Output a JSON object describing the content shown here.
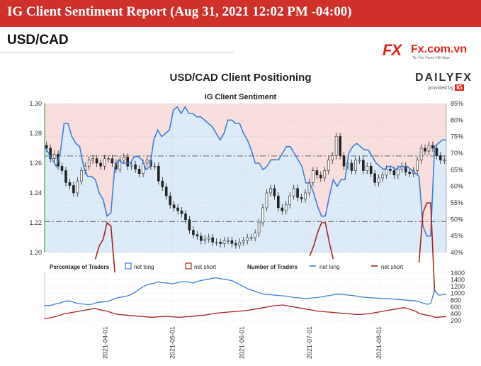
{
  "banner": {
    "title": "IG Client Sentiment Report (Aug 31, 2021 12:02 PM -04:00)"
  },
  "pair": "USD/CAD",
  "logo": {
    "mark": "FX",
    "text": "Fx.com.vn",
    "sub": "Tin Tức Forex Việt Nam"
  },
  "chart_data": {
    "type": "line",
    "title": "USD/CAD Client Positioning",
    "subtitle": "IG Client Sentiment",
    "brand": {
      "name": "DAILYFX",
      "provided_by": "provided by",
      "badge": "IG"
    },
    "price_axis": {
      "ylim": [
        1.2,
        1.3
      ],
      "ticks": [
        "1.30",
        "1.28",
        "1.26",
        "1.24",
        "1.22",
        "1.20"
      ]
    },
    "percent_axis": {
      "ylim": [
        40,
        85
      ],
      "ticks": [
        "85%",
        "80%",
        "75%",
        "70%",
        "65%",
        "60%",
        "55%",
        "50%",
        "45%",
        "40%"
      ]
    },
    "traders_axis": {
      "ticks": [
        "1600",
        "1400",
        "1200",
        "1000",
        "800",
        "600",
        "400",
        "200"
      ]
    },
    "x_dates": [
      "2021-04-01",
      "2021-05-01",
      "2021-06-01",
      "2021-07-01",
      "2021-08-01"
    ],
    "legend": {
      "percentage_title": "Percentage of Traders",
      "net_long": "net long",
      "net_short": "net short",
      "number_title": "Number of Traders"
    },
    "colors": {
      "long": "#3d7fd6",
      "short": "#a8231f",
      "up_candle": "#ffffff",
      "down_candle": "#222222"
    },
    "dates_range": [
      "2021-03-05",
      "2021-08-31"
    ],
    "price_close": [
      1.27,
      1.263,
      1.266,
      1.258,
      1.255,
      1.247,
      1.245,
      1.24,
      1.248,
      1.255,
      1.258,
      1.262,
      1.263,
      1.26,
      1.258,
      1.263,
      1.263,
      1.26,
      1.256,
      1.262,
      1.264,
      1.258,
      1.259,
      1.256,
      1.253,
      1.26,
      1.262,
      1.258,
      1.258,
      1.248,
      1.244,
      1.238,
      1.232,
      1.23,
      1.228,
      1.226,
      1.222,
      1.215,
      1.212,
      1.211,
      1.208,
      1.209,
      1.21,
      1.207,
      1.207,
      1.206,
      1.208,
      1.208,
      1.206,
      1.205,
      1.207,
      1.208,
      1.21,
      1.21,
      1.213,
      1.22,
      1.23,
      1.24,
      1.243,
      1.238,
      1.23,
      1.228,
      1.232,
      1.238,
      1.243,
      1.237,
      1.236,
      1.24,
      1.247,
      1.255,
      1.252,
      1.25,
      1.255,
      1.262,
      1.265,
      1.278,
      1.265,
      1.258,
      1.26,
      1.255,
      1.262,
      1.262,
      1.255,
      1.258,
      1.253,
      1.247,
      1.25,
      1.252,
      1.256,
      1.255,
      1.252,
      1.256,
      1.258,
      1.254,
      1.253,
      1.255,
      1.262,
      1.27,
      1.268,
      1.272,
      1.27,
      1.265,
      1.262,
      1.262
    ],
    "percent_long": [
      72,
      70,
      68,
      66,
      70,
      79,
      79,
      75,
      73,
      72,
      66,
      63,
      63,
      62,
      58,
      56,
      51,
      52,
      66,
      68,
      67,
      67,
      67,
      69,
      69,
      68,
      65,
      66,
      74,
      77,
      75,
      76,
      77,
      83,
      84,
      82,
      84,
      82,
      82,
      81,
      81,
      80,
      79,
      78,
      76,
      74,
      76,
      80,
      80,
      79,
      79,
      76,
      74,
      71,
      67,
      67,
      65,
      66,
      68,
      68,
      68,
      70,
      72,
      72,
      70,
      68,
      66,
      61,
      61,
      58,
      54,
      51,
      51,
      57,
      62,
      60,
      62,
      62,
      70,
      72,
      73,
      72,
      71,
      71,
      69,
      67,
      66,
      65,
      66,
      66,
      65,
      66,
      66,
      66,
      65,
      64,
      63,
      48,
      45,
      45,
      72,
      73,
      74,
      74
    ],
    "percent_short": [
      28,
      30,
      32,
      34,
      30,
      21,
      21,
      25,
      27,
      28,
      34,
      37,
      37,
      38,
      42,
      44,
      49,
      48,
      34,
      32,
      33,
      33,
      33,
      31,
      31,
      32,
      35,
      34,
      26,
      23,
      25,
      24,
      23,
      17,
      16,
      18,
      16,
      18,
      18,
      19,
      19,
      20,
      21,
      22,
      24,
      26,
      24,
      20,
      20,
      21,
      21,
      24,
      26,
      29,
      33,
      33,
      35,
      34,
      32,
      32,
      32,
      30,
      28,
      28,
      30,
      32,
      34,
      39,
      39,
      42,
      46,
      49,
      49,
      43,
      38,
      40,
      38,
      38,
      30,
      28,
      27,
      28,
      29,
      29,
      31,
      33,
      34,
      35,
      34,
      34,
      35,
      34,
      34,
      34,
      35,
      36,
      37,
      52,
      55,
      55,
      28,
      27,
      26,
      26
    ],
    "traders_long": [
      650,
      640,
      660,
      700,
      720,
      760,
      780,
      760,
      720,
      700,
      690,
      670,
      680,
      720,
      740,
      750,
      760,
      800,
      850,
      880,
      900,
      920,
      960,
      1020,
      1100,
      1180,
      1240,
      1280,
      1300,
      1340,
      1320,
      1310,
      1300,
      1280,
      1320,
      1340,
      1350,
      1330,
      1310,
      1340,
      1380,
      1400,
      1420,
      1450,
      1460,
      1440,
      1420,
      1400,
      1380,
      1320,
      1260,
      1200,
      1140,
      1100,
      1060,
      1020,
      990,
      970,
      960,
      950,
      940,
      930,
      920,
      900,
      880,
      870,
      860,
      850,
      860,
      870,
      880,
      900,
      920,
      940,
      960,
      980,
      970,
      960,
      950,
      940,
      920,
      900,
      890,
      880,
      870,
      860,
      860,
      850,
      850,
      840,
      830,
      820,
      810,
      800,
      790,
      780,
      760,
      720,
      680,
      700,
      1100,
      950,
      960,
      980
    ],
    "traders_short": [
      250,
      270,
      300,
      320,
      360,
      400,
      420,
      440,
      460,
      480,
      500,
      520,
      540,
      560,
      520,
      500,
      480,
      440,
      400,
      380,
      370,
      360,
      350,
      340,
      330,
      320,
      310,
      300,
      300,
      310,
      320,
      330,
      320,
      310,
      300,
      300,
      310,
      320,
      330,
      340,
      350,
      360,
      380,
      400,
      420,
      430,
      440,
      450,
      460,
      470,
      480,
      490,
      500,
      520,
      540,
      560,
      580,
      600,
      620,
      640,
      650,
      660,
      640,
      620,
      600,
      580,
      560,
      540,
      520,
      500,
      480,
      470,
      460,
      450,
      440,
      430,
      420,
      410,
      400,
      390,
      380,
      380,
      390,
      400,
      420,
      440,
      460,
      480,
      500,
      520,
      540,
      560,
      580,
      560,
      520,
      480,
      420,
      380,
      360,
      340,
      300,
      300,
      310,
      320
    ]
  }
}
